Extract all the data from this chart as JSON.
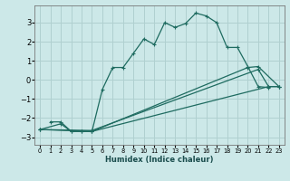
{
  "xlabel": "Humidex (Indice chaleur)",
  "background_color": "#cce8e8",
  "grid_color": "#b0d0d0",
  "line_color": "#1e6b60",
  "xlim": [
    -0.5,
    23.5
  ],
  "ylim": [
    -3.4,
    3.9
  ],
  "yticks": [
    -3,
    -2,
    -1,
    0,
    1,
    2,
    3
  ],
  "xticks": [
    0,
    1,
    2,
    3,
    4,
    5,
    6,
    7,
    8,
    9,
    10,
    11,
    12,
    13,
    14,
    15,
    16,
    17,
    18,
    19,
    20,
    21,
    22,
    23
  ],
  "series": [
    {
      "x": [
        1,
        2,
        3,
        4,
        5,
        6,
        7,
        8,
        9,
        10,
        11,
        12,
        13,
        14,
        15,
        16,
        17,
        18,
        19,
        20,
        21,
        22
      ],
      "y": [
        -2.2,
        -2.2,
        -2.7,
        -2.7,
        -2.7,
        -0.5,
        0.65,
        0.65,
        1.4,
        2.15,
        1.85,
        3.0,
        2.75,
        2.95,
        3.5,
        3.35,
        3.0,
        1.7,
        1.7,
        0.7,
        -0.35,
        -0.4
      ]
    },
    {
      "x": [
        0,
        2,
        3,
        4,
        5,
        22,
        23
      ],
      "y": [
        -2.6,
        -2.3,
        -2.7,
        -2.7,
        -2.7,
        -0.35,
        -0.35
      ]
    },
    {
      "x": [
        0,
        5,
        20,
        21,
        23
      ],
      "y": [
        -2.6,
        -2.7,
        0.65,
        0.7,
        -0.35
      ]
    },
    {
      "x": [
        0,
        5,
        21,
        22,
        23
      ],
      "y": [
        -2.6,
        -2.65,
        0.55,
        -0.35,
        -0.35
      ]
    }
  ]
}
